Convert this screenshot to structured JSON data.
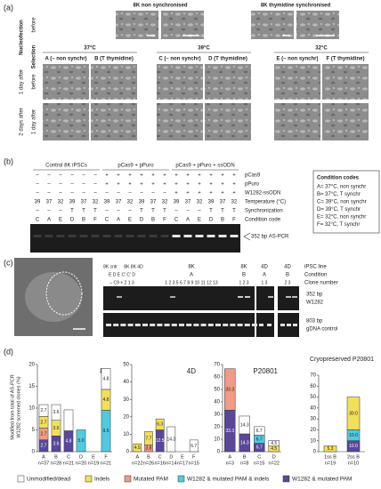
{
  "panel_a": {
    "label": "(a)",
    "top_titles": [
      "8K non synchronised",
      "8K thymidine synchronised"
    ],
    "row_labels": [
      "before",
      "Nucleofection",
      "Selection",
      "1 day after",
      "before",
      "2 days after",
      "1 day after"
    ],
    "temperatures": [
      "37°C",
      "39°C",
      "32°C"
    ],
    "conditions": [
      "A (– non synchr)",
      "B (T thymidine)",
      "C (– non synchr)",
      "D (T thymidine)",
      "E (– non synchr)",
      "F (T thymidine)"
    ]
  },
  "panel_b": {
    "label": "(b)",
    "groups": [
      "Control 8K iPSCs",
      "pCas9 + pPuro",
      "pCas9 + pPuro + ssODN"
    ],
    "rows": [
      {
        "label": "pCas9",
        "cells": [
          "–",
          "–",
          "–",
          "–",
          "–",
          "–",
          "+",
          "+",
          "+",
          "+",
          "+",
          "+",
          "+",
          "+",
          "+",
          "+",
          "+",
          "+"
        ]
      },
      {
        "label": "pPuro",
        "cells": [
          "–",
          "–",
          "–",
          "–",
          "–",
          "–",
          "+",
          "+",
          "+",
          "+",
          "+",
          "+",
          "+",
          "+",
          "+",
          "+",
          "+",
          "+"
        ]
      },
      {
        "label": "W1282-ssODN",
        "cells": [
          "–",
          "–",
          "–",
          "–",
          "–",
          "–",
          "–",
          "–",
          "–",
          "–",
          "–",
          "–",
          "+",
          "+",
          "+",
          "+",
          "+",
          "+"
        ]
      },
      {
        "label": "Temperature (°C)",
        "cells": [
          39,
          37,
          32,
          39,
          37,
          32,
          39,
          37,
          32,
          39,
          37,
          32,
          39,
          37,
          32,
          39,
          37,
          32
        ]
      },
      {
        "label": "Synchronization",
        "cells": [
          "–",
          "–",
          "–",
          "T",
          "T",
          "T",
          "–",
          "–",
          "–",
          "T",
          "T",
          "T",
          "–",
          "–",
          "–",
          "T",
          "T",
          "T"
        ]
      },
      {
        "label": "Condition code",
        "cells": [
          "C",
          "A",
          "E",
          "D",
          "B",
          "F",
          "C",
          "A",
          "E",
          "D",
          "B",
          "F",
          "C",
          "A",
          "E",
          "D",
          "B",
          "F"
        ]
      }
    ],
    "gel_label": "352 bp AS-PCR",
    "codes_title": "Condition codes",
    "codes": [
      "A= 37°C, non synchr",
      "B= 37°C, T synchr",
      "C= 39°C, non synchr",
      "D= 39°C, T synchr",
      "E= 32°C, non synchr",
      "F= 32°C, T synchr"
    ]
  },
  "panel_c": {
    "label": "(c)",
    "iPSC_line": [
      "8K cntr",
      "8K 8K 4D",
      "8K",
      "8K",
      "4D",
      "4D"
    ],
    "condition": [
      "E D E C' C' D",
      "A",
      "B",
      "A",
      "B"
    ],
    "clone_number": [
      "– C9 + 2 1 3",
      "1 2 3 5 6 7 8 9 10 11 12 13",
      "1 2 3",
      "1 3",
      "2 3"
    ],
    "row_labels": [
      "iPSC line",
      "Condition",
      "Clone number"
    ],
    "gel_labels": [
      "352 bp",
      "W1282",
      "803 bp",
      "gDNA control"
    ]
  },
  "panel_d": {
    "label": "(d)",
    "ylabel": [
      "Modified from total of AS-PCR",
      "W1282 screened clones (%)"
    ]
  },
  "chart_data": [
    {
      "type": "bar",
      "stacked": true,
      "title": "8K",
      "categories": [
        "A",
        "B",
        "C",
        "D",
        "E",
        "F"
      ],
      "n_labels": [
        "n=37",
        "n=28",
        "n=21",
        "n=20",
        "n=19",
        "n=21"
      ],
      "ylim": [
        0,
        20
      ],
      "yticks": [
        0,
        5,
        10,
        15,
        20
      ],
      "series": [
        {
          "name": "Unmodified/dead",
          "color": "#ffffff",
          "values": [
            2.7,
            3.6,
            4.8,
            null,
            null,
            4.8
          ],
          "value_labels": [
            "2.7",
            "3.6",
            null,
            null,
            null,
            "4.8"
          ]
        },
        {
          "name": "Indels",
          "color": "#f2e05a",
          "values": [
            2.7,
            3.6,
            null,
            null,
            null,
            4.8
          ],
          "value_labels": [
            "2.7",
            "3.6",
            null,
            null,
            null,
            "4.8"
          ]
        },
        {
          "name": "Mutated PAM",
          "color": "#f29a86",
          "values": [
            2.7,
            null,
            null,
            null,
            null,
            null
          ],
          "value_labels": [
            "2.7",
            null,
            null,
            null,
            null,
            null
          ]
        },
        {
          "name": "W1282 & mutated PAM & indels",
          "color": "#4fcbe0",
          "values": [
            null,
            null,
            null,
            5.0,
            null,
            9.5
          ],
          "value_labels": [
            null,
            null,
            null,
            "5.0",
            null,
            "9.5"
          ]
        },
        {
          "name": "W1282 & mutated PAM",
          "color": "#5a479c",
          "values": [
            2.7,
            3.6,
            4.8,
            null,
            null,
            null
          ],
          "value_labels": [
            "2.7",
            "3.6",
            "4.8",
            null,
            null,
            null
          ]
        }
      ]
    },
    {
      "type": "bar",
      "stacked": true,
      "title": "4D",
      "categories": [
        "A",
        "B",
        "C",
        "D",
        "E",
        "F"
      ],
      "n_labels": [
        "n=22",
        "n=26",
        "n=16",
        "n=14",
        "n=17",
        "n=15"
      ],
      "ylim": [
        0,
        50
      ],
      "yticks": [
        0,
        10,
        20,
        30,
        40,
        50
      ],
      "series": [
        {
          "values": [
            null,
            null,
            null,
            14.3,
            null,
            6.7
          ],
          "value_labels": [
            null,
            null,
            null,
            "14.3",
            null,
            "6.7"
          ]
        },
        {
          "values": [
            4.5,
            7.7,
            6.3,
            null,
            null,
            null
          ],
          "value_labels": [
            "4.5",
            "7.7",
            "6.3",
            null,
            null,
            null
          ]
        },
        {
          "values": [
            null,
            3.8,
            null,
            null,
            null,
            null
          ],
          "value_labels": [
            null,
            "3.8",
            null,
            null,
            null,
            null
          ]
        },
        {
          "values": [
            null,
            null,
            null,
            null,
            null,
            null
          ],
          "value_labels": [
            null,
            null,
            null,
            null,
            null,
            null
          ]
        },
        {
          "values": [
            null,
            null,
            12.5,
            null,
            null,
            null
          ],
          "value_labels": [
            null,
            null,
            "12.5",
            null,
            null,
            null
          ]
        }
      ]
    },
    {
      "type": "bar",
      "stacked": true,
      "title": "P20801",
      "categories": [
        "A",
        "B",
        "C",
        "D"
      ],
      "n_labels": [
        "n=3",
        "n=8",
        "n=15",
        "n=22"
      ],
      "ylim": [
        0,
        70
      ],
      "yticks": [
        0,
        10,
        20,
        30,
        40,
        50,
        60,
        70
      ],
      "series": [
        {
          "values": [
            null,
            14.3,
            6.7,
            4.5
          ],
          "value_labels": [
            null,
            "14.3",
            "6.7",
            "4.5"
          ]
        },
        {
          "values": [
            null,
            null,
            null,
            4.5
          ],
          "value_labels": [
            null,
            null,
            null,
            "4.5"
          ]
        },
        {
          "values": [
            33.3,
            null,
            null,
            null
          ],
          "value_labels": [
            "33.3",
            null,
            null,
            null
          ]
        },
        {
          "values": [
            null,
            null,
            6.7,
            null
          ],
          "value_labels": [
            null,
            null,
            "6.7",
            null
          ]
        },
        {
          "values": [
            33.3,
            14.3,
            6.7,
            null
          ],
          "value_labels": [
            "33.3",
            "14.3",
            "6.7",
            null
          ]
        }
      ]
    },
    {
      "type": "bar",
      "stacked": true,
      "title": "Cryopreserved P20801",
      "categories": [
        "1ss B",
        "2ss B"
      ],
      "n_labels": [
        "n=19",
        "n=10"
      ],
      "ylim": [
        0,
        70
      ],
      "yticks": [
        0,
        10,
        20,
        30,
        40,
        50,
        60,
        70
      ],
      "series": [
        {
          "values": [
            null,
            null
          ],
          "value_labels": [
            null,
            null
          ]
        },
        {
          "values": [
            5.3,
            30.0
          ],
          "value_labels": [
            "5.3",
            "30.0"
          ]
        },
        {
          "values": [
            null,
            null
          ],
          "value_labels": [
            null,
            null
          ]
        },
        {
          "values": [
            null,
            10.0
          ],
          "value_labels": [
            null,
            "10.0"
          ]
        },
        {
          "values": [
            null,
            10.0
          ],
          "value_labels": [
            null,
            "10.0"
          ]
        }
      ]
    }
  ]
}
